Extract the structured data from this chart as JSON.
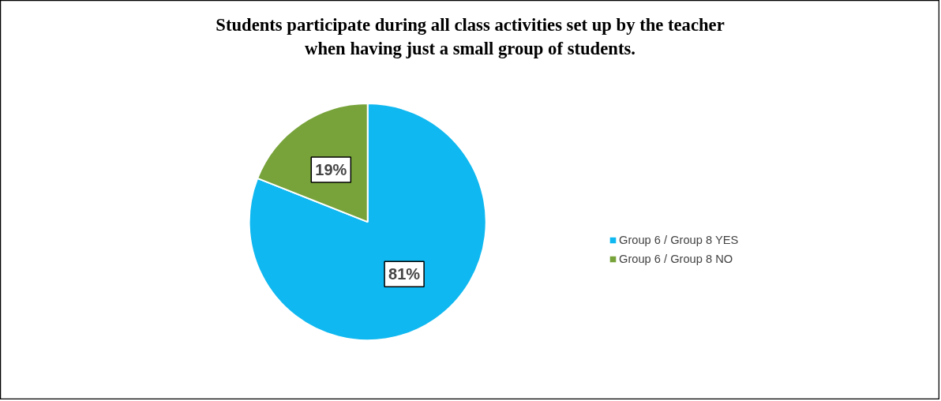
{
  "chart_data": {
    "type": "pie",
    "title": "Students participate during all class activities set up by the teacher\nwhen having just a small group of students.",
    "categories": [
      "Group 6 / Group 8 YES",
      "Group 6 / Group 8 NO"
    ],
    "values": [
      81,
      19
    ],
    "colors": [
      "#0fb8f0",
      "#77a33a"
    ],
    "value_labels": [
      "81%",
      "19%"
    ],
    "legend": "right"
  }
}
